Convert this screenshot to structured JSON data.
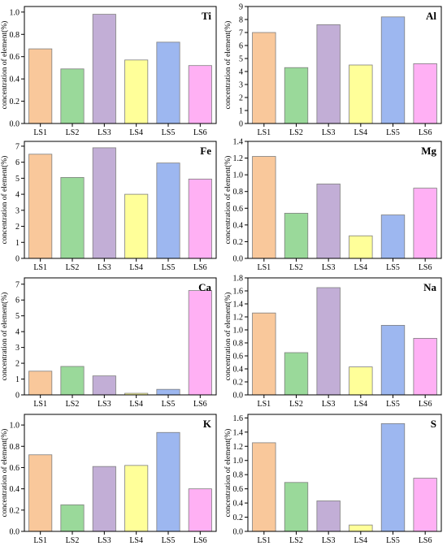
{
  "colors": {
    "bars": [
      "#F9C89B",
      "#9AD99A",
      "#C2AED6",
      "#FFFF99",
      "#9DB7F0",
      "#FFB0F4"
    ],
    "bar_edge": "#7f7f7f",
    "axis": "#000000"
  },
  "chart_data": [
    {
      "type": "bar",
      "title": "Ti",
      "ylabel": "concentration of element(%)",
      "categories": [
        "LS1",
        "LS2",
        "LS3",
        "LS4",
        "LS5",
        "LS6"
      ],
      "values": [
        0.67,
        0.49,
        0.98,
        0.57,
        0.73,
        0.52
      ],
      "ylim": [
        0,
        1.05
      ],
      "yticks": [
        0.0,
        0.2,
        0.4,
        0.6,
        0.8,
        1.0
      ],
      "ytick_labels": [
        "0.0",
        "0.2",
        "0.4",
        "0.6",
        "0.8",
        "1.0"
      ]
    },
    {
      "type": "bar",
      "title": "Al",
      "ylabel": "concentration of element(%)",
      "categories": [
        "LS1",
        "LS2",
        "LS3",
        "LS4",
        "LS5",
        "LS6"
      ],
      "values": [
        7.0,
        4.3,
        7.6,
        4.5,
        8.2,
        4.6
      ],
      "ylim": [
        0,
        9
      ],
      "yticks": [
        0,
        1,
        2,
        3,
        4,
        5,
        6,
        7,
        8,
        9
      ],
      "ytick_labels": [
        "0",
        "1",
        "2",
        "3",
        "4",
        "5",
        "6",
        "7",
        "8",
        "9"
      ]
    },
    {
      "type": "bar",
      "title": "Fe",
      "ylabel": "concentration of element(%)",
      "categories": [
        "LS1",
        "LS2",
        "LS3",
        "LS4",
        "LS5",
        "LS6"
      ],
      "values": [
        6.5,
        5.05,
        6.9,
        4.0,
        5.95,
        4.95
      ],
      "ylim": [
        0,
        7.3
      ],
      "yticks": [
        0,
        1,
        2,
        3,
        4,
        5,
        6,
        7
      ],
      "ytick_labels": [
        "0",
        "1",
        "2",
        "3",
        "4",
        "5",
        "6",
        "7"
      ]
    },
    {
      "type": "bar",
      "title": "Mg",
      "ylabel": "concentration of element(%)",
      "categories": [
        "LS1",
        "LS2",
        "LS3",
        "LS4",
        "LS5",
        "LS6"
      ],
      "values": [
        1.22,
        0.54,
        0.89,
        0.27,
        0.52,
        0.84
      ],
      "ylim": [
        0,
        1.4
      ],
      "yticks": [
        0.0,
        0.2,
        0.4,
        0.6,
        0.8,
        1.0,
        1.2,
        1.4
      ],
      "ytick_labels": [
        "0.0",
        "0.2",
        "0.4",
        "0.6",
        "0.8",
        "1.0",
        "1.2",
        "1.4"
      ]
    },
    {
      "type": "bar",
      "title": "Ca",
      "ylabel": "concentration of element(%)",
      "categories": [
        "LS1",
        "LS2",
        "LS3",
        "LS4",
        "LS5",
        "LS6"
      ],
      "values": [
        1.5,
        1.8,
        1.2,
        0.1,
        0.35,
        6.6
      ],
      "ylim": [
        0,
        7.4
      ],
      "yticks": [
        0,
        1,
        2,
        3,
        4,
        5,
        6,
        7
      ],
      "ytick_labels": [
        "0",
        "1",
        "2",
        "3",
        "4",
        "5",
        "6",
        "7"
      ]
    },
    {
      "type": "bar",
      "title": "Na",
      "ylabel": "concentration of element(%)",
      "categories": [
        "LS1",
        "LS2",
        "LS3",
        "LS4",
        "LS5",
        "LS6"
      ],
      "values": [
        1.26,
        0.65,
        1.65,
        0.43,
        1.07,
        0.87
      ],
      "ylim": [
        0,
        1.8
      ],
      "yticks": [
        0.0,
        0.2,
        0.4,
        0.6,
        0.8,
        1.0,
        1.2,
        1.4,
        1.6,
        1.8
      ],
      "ytick_labels": [
        "0.0",
        "0.2",
        "0.4",
        "0.6",
        "0.8",
        "1.0",
        "1.2",
        "1.4",
        "1.6",
        "1.8"
      ]
    },
    {
      "type": "bar",
      "title": "K",
      "ylabel": "concentration of element(%)",
      "categories": [
        "LS1",
        "LS2",
        "LS3",
        "LS4",
        "LS5",
        "LS6"
      ],
      "values": [
        0.72,
        0.25,
        0.61,
        0.62,
        0.93,
        0.4
      ],
      "ylim": [
        0,
        1.1
      ],
      "yticks": [
        0.0,
        0.2,
        0.4,
        0.6,
        0.8,
        1.0
      ],
      "ytick_labels": [
        "0.0",
        "0.2",
        "0.4",
        "0.6",
        "0.8",
        "1.0"
      ]
    },
    {
      "type": "bar",
      "title": "S",
      "ylabel": "concentration of element(%)",
      "categories": [
        "LS1",
        "LS2",
        "LS3",
        "LS4",
        "LS5",
        "LS6"
      ],
      "values": [
        1.25,
        0.69,
        0.43,
        0.09,
        1.52,
        0.75
      ],
      "ylim": [
        0,
        1.65
      ],
      "yticks": [
        0.0,
        0.2,
        0.4,
        0.6,
        0.8,
        1.0,
        1.2,
        1.4,
        1.6
      ],
      "ytick_labels": [
        "0.0",
        "0.2",
        "0.4",
        "0.6",
        "0.8",
        "1.0",
        "1.2",
        "1.4",
        "1.6"
      ]
    }
  ]
}
